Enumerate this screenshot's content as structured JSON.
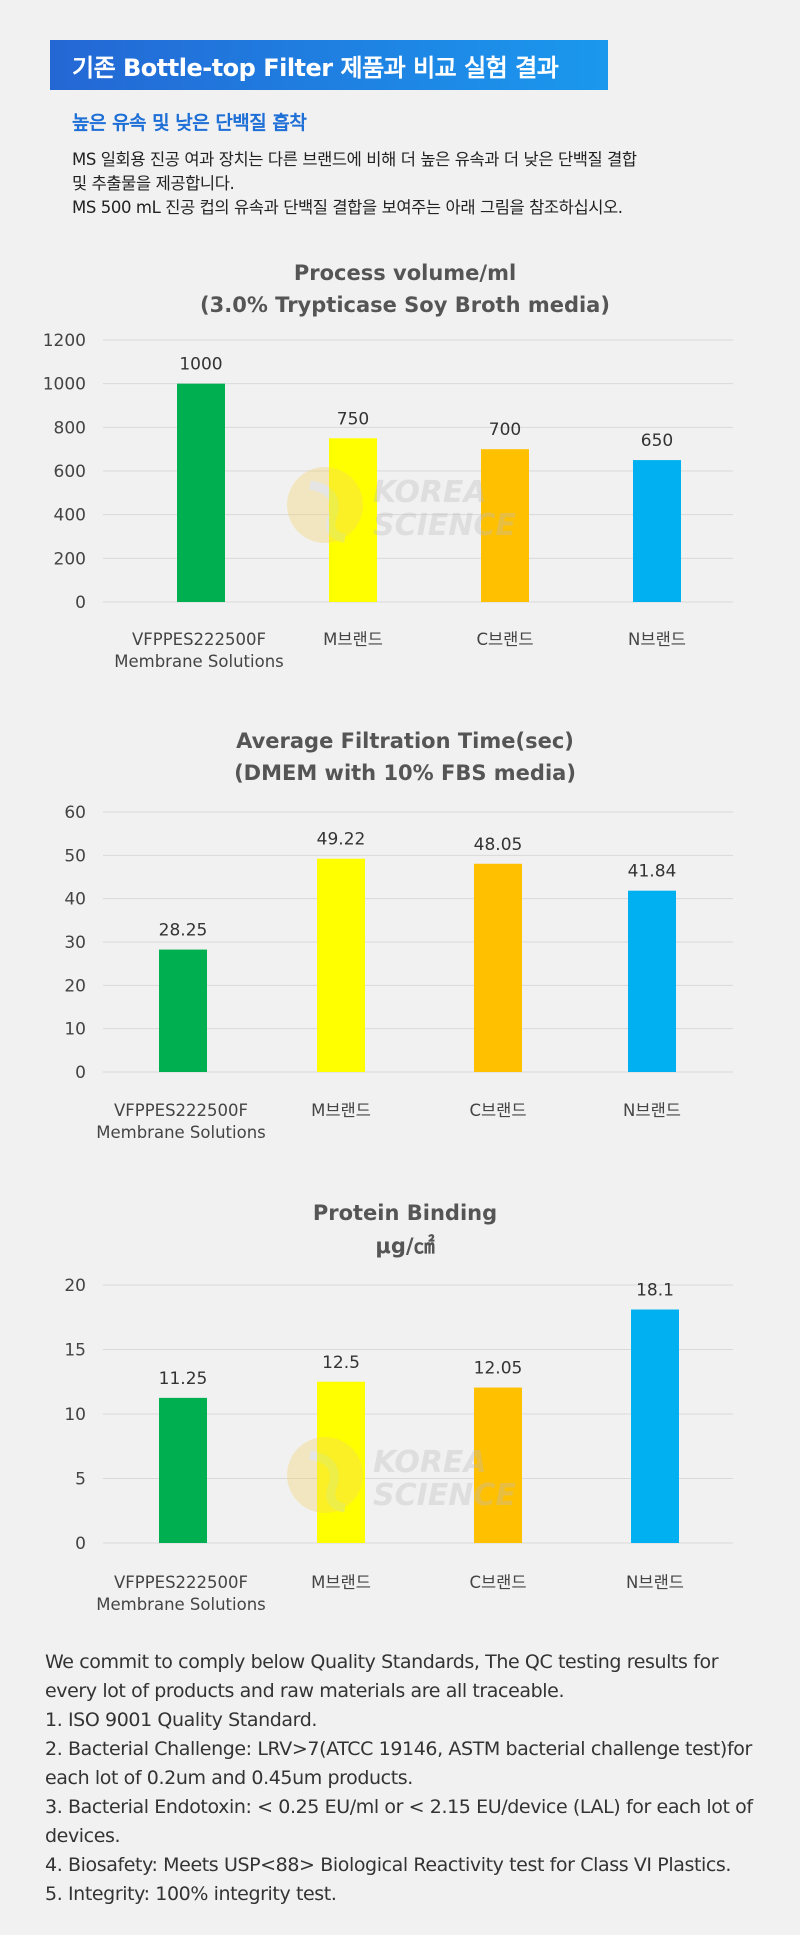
{
  "header": {
    "banner_title": "기존 Bottle-top Filter 제품과 비교 실험 결과",
    "subtitle": "높은 유속 및 낮은 단백질 흡착",
    "intro_lines": [
      "MS 일회용 진공 여과 장치는 다른 브랜드에 비해 더 높은 유속과 더 낮은 단백질 결합",
      "및 추출물을 제공합니다.",
      "MS 500 mL 진공 컵의 유속과 단백질 결합을 보여주는 아래 그림을 참조하십시오."
    ]
  },
  "watermark": {
    "line1": "KOREA",
    "line2": "SCIENCE"
  },
  "chart_data": [
    {
      "type": "bar",
      "title": "Process volume/ml",
      "subtitle": "(3.0% Trypticase Soy Broth media)",
      "categories": [
        [
          "VFPPES222500F",
          "Membrane Solutions"
        ],
        [
          "M브랜드"
        ],
        [
          "C브랜드"
        ],
        [
          "N브랜드"
        ]
      ],
      "values": [
        1000,
        750,
        700,
        650
      ],
      "value_labels": [
        "1000",
        "750",
        "700",
        "650"
      ],
      "colors": [
        "#00b050",
        "#ffff00",
        "#ffc000",
        "#00b0f0"
      ],
      "ylim": [
        0,
        1200
      ],
      "yticks": [
        0,
        200,
        400,
        600,
        800,
        1000,
        1200
      ],
      "grid": true
    },
    {
      "type": "bar",
      "title": "Average Filtration Time(sec)",
      "subtitle": "(DMEM with 10% FBS media)",
      "categories": [
        [
          "VFPPES222500F",
          "Membrane Solutions"
        ],
        [
          "M브랜드"
        ],
        [
          "C브랜드"
        ],
        [
          "N브랜드"
        ]
      ],
      "values": [
        28.25,
        49.22,
        48.05,
        41.84
      ],
      "value_labels": [
        "28.25",
        "49.22",
        "48.05",
        "41.84"
      ],
      "colors": [
        "#00b050",
        "#ffff00",
        "#ffc000",
        "#00b0f0"
      ],
      "ylim": [
        0,
        60
      ],
      "yticks": [
        0,
        10,
        20,
        30,
        40,
        50,
        60
      ],
      "grid": true
    },
    {
      "type": "bar",
      "title": "Protein Binding",
      "subtitle": "μg/㎠",
      "categories": [
        [
          "VFPPES222500F",
          "Membrane Solutions"
        ],
        [
          "M브랜드"
        ],
        [
          "C브랜드"
        ],
        [
          "N브랜드"
        ]
      ],
      "values": [
        11.25,
        12.5,
        12.05,
        18.1
      ],
      "value_labels": [
        "11.25",
        "12.5",
        "12.05",
        "18.1"
      ],
      "colors": [
        "#00b050",
        "#ffff00",
        "#ffc000",
        "#00b0f0"
      ],
      "ylim": [
        0,
        20
      ],
      "yticks": [
        0,
        5,
        10,
        15,
        20
      ],
      "grid": true
    }
  ],
  "footer": {
    "lines": [
      "We commit to comply below Quality Standards, The QC testing results for every lot of products and raw materials are all traceable.",
      "1. ISO 9001 Quality Standard.",
      "2. Bacterial Challenge: LRV>7(ATCC 19146, ASTM bacterial challenge test)for each lot of 0.2um and 0.45um products.",
      "3. Bacterial Endotoxin: < 0.25 EU/ml or < 2.15 EU/device (LAL) for each lot of devices.",
      "4. Biosafety: Meets USP<88> Biological Reactivity test for Class VI Plastics.",
      "5. Integrity: 100% integrity test."
    ]
  }
}
